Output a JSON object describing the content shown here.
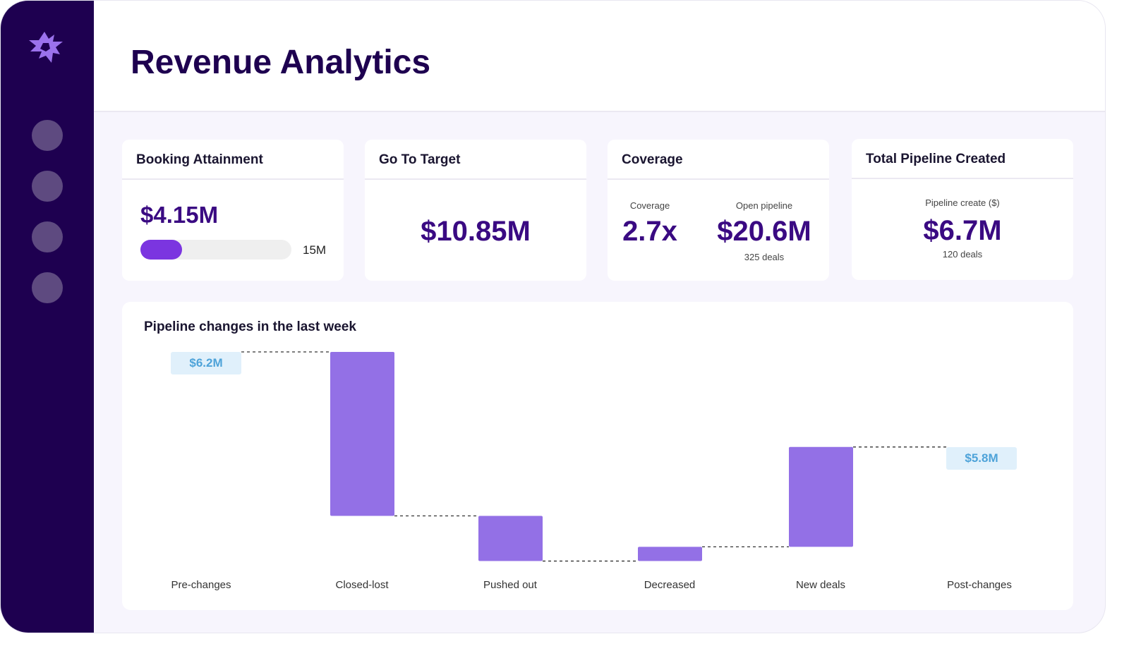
{
  "header": {
    "title": "Revenue Analytics"
  },
  "sidebar": {
    "logo": "starburst-logo",
    "items": [
      "nav-1",
      "nav-2",
      "nav-3",
      "nav-4"
    ]
  },
  "cards": {
    "booking": {
      "title": "Booking Attainment",
      "value": "$4.15M",
      "target": "15M",
      "progress": 0.277,
      "bar_color": "#7b35e0"
    },
    "go_to_target": {
      "title": "Go To Target",
      "value": "$10.85M"
    },
    "coverage": {
      "title": "Coverage",
      "coverage_label": "Coverage",
      "coverage_value": "2.7x",
      "pipeline_label": "Open pipeline",
      "pipeline_value": "$20.6M",
      "deals": "325 deals"
    },
    "pipeline": {
      "title": "Total Pipeline Created",
      "label": "Pipeline create ($)",
      "value": "$6.7M",
      "deals": "120 deals"
    }
  },
  "chart_data": {
    "type": "waterfall",
    "title": "Pipeline changes in the last week",
    "categories": [
      "Pre-changes",
      "Closed-lost",
      "Pushed out",
      "Decreased",
      "New deals",
      "Post-changes"
    ],
    "start_label": "$6.2M",
    "end_label": "$5.8M",
    "start_value": 6.2,
    "end_value": 5.8,
    "steps": [
      {
        "from": 6.2,
        "to": 5.51
      },
      {
        "from": 5.51,
        "to": 5.32
      },
      {
        "from": 5.32,
        "to": 5.38
      },
      {
        "from": 5.38,
        "to": 5.8
      }
    ],
    "bar_color": "#9370e6",
    "label_bg": "#e0f0fb",
    "label_color": "#4ea3d9"
  }
}
